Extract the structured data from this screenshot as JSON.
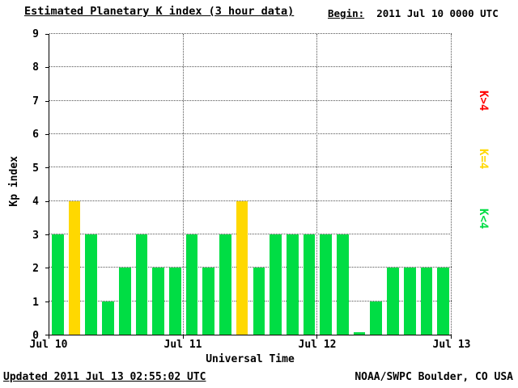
{
  "title": "Estimated Planetary K index (3 hour data)",
  "begin_label": "Begin:",
  "begin_value": "2011 Jul 10 0000 UTC",
  "footer": {
    "updated": "Updated 2011 Jul 13 02:55:02 UTC",
    "source": "NOAA/SWPC Boulder, CO USA"
  },
  "legend": [
    {
      "label": "K>4",
      "color": "#ff0000"
    },
    {
      "label": "K=4",
      "color": "#ffd800"
    },
    {
      "label": "K<4",
      "color": "#00dd44"
    }
  ],
  "chart_data": {
    "type": "bar",
    "title": "Estimated Planetary K index (3 hour data)",
    "xlabel": "Universal Time",
    "ylabel": "Kp index",
    "ylim": [
      0,
      9
    ],
    "yticks": [
      0,
      1,
      2,
      3,
      4,
      5,
      6,
      7,
      8,
      9
    ],
    "xticks": [
      "Jul 10",
      "Jul 11",
      "Jul 12",
      "Jul 13"
    ],
    "bar_interval_hours": 3,
    "begin": "2011 Jul 10 0000 UTC",
    "values": [
      3,
      4,
      3,
      1,
      2,
      3,
      2,
      2,
      3,
      2,
      3,
      4,
      2,
      3,
      3,
      3,
      3,
      3,
      0,
      1,
      2,
      2,
      2,
      2
    ],
    "color_rule": "green K<4, yellow K=4, red K>4",
    "green": "#00dd44",
    "yellow": "#ffd800",
    "red": "#ff0000",
    "grid": "dotted horizontal at each Kp integer, dotted vertical at each day boundary",
    "legend_position": "right, rotated"
  }
}
